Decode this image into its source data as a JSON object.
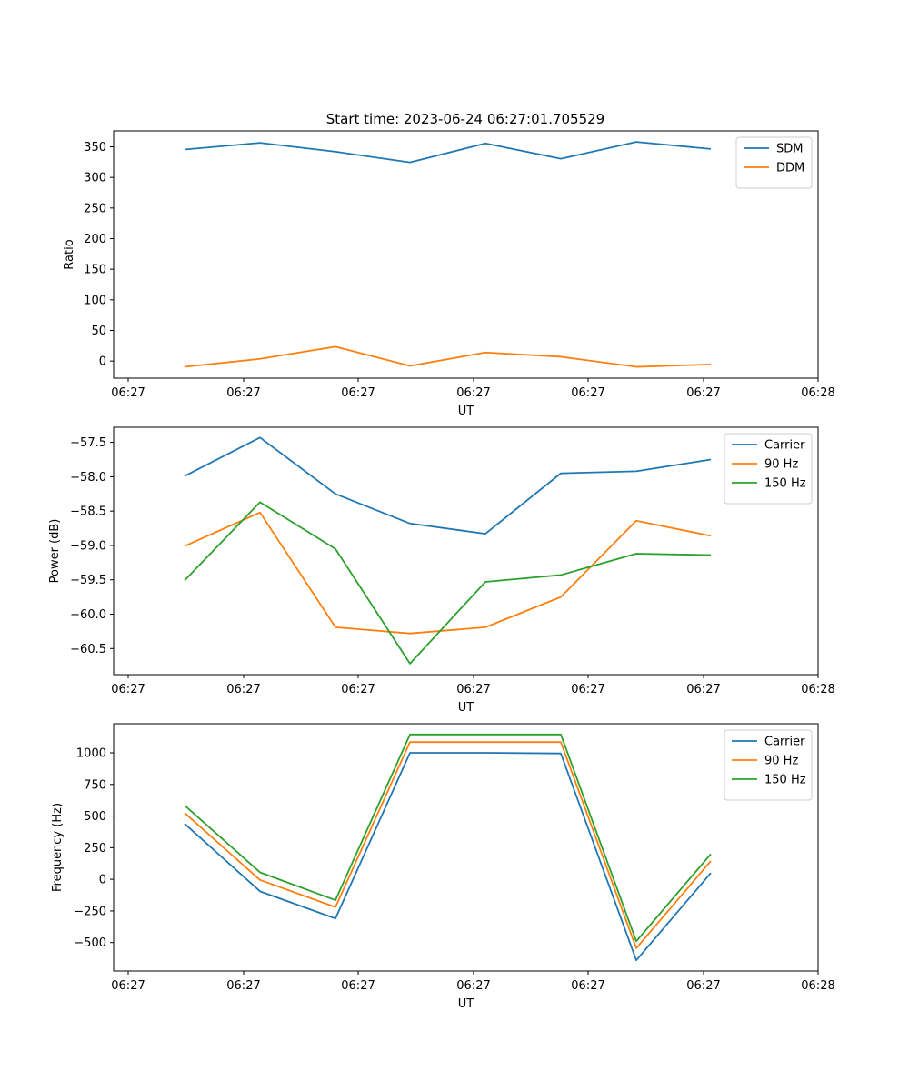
{
  "figure": {
    "title": "Start time: 2023-06-24 06:27:01.705529"
  },
  "chart_data": [
    {
      "type": "line",
      "title": "Start time: 2023-06-24 06:27:01.705529",
      "xlabel": "UT",
      "ylabel": "Ratio",
      "x_tick_labels": [
        "06:27",
        "06:27",
        "06:27",
        "06:27",
        "06:27",
        "06:27",
        "06:28"
      ],
      "y_ticks": [
        0,
        50,
        100,
        150,
        200,
        250,
        300,
        350
      ],
      "ylim": [
        -28,
        376
      ],
      "legend_position": "top-right",
      "grid": false,
      "series": [
        {
          "name": "SDM",
          "color": "#1f77b4",
          "values": [
            345.5,
            356.5,
            342,
            324.5,
            355.5,
            330.5,
            358,
            346.5
          ]
        },
        {
          "name": "DDM",
          "color": "#ff7f0e",
          "values": [
            -9.5,
            3.5,
            23.5,
            -8,
            14,
            7,
            -9.5,
            -5.5
          ]
        }
      ]
    },
    {
      "type": "line",
      "title": "",
      "xlabel": "UT",
      "ylabel": "Power (dB)",
      "x_tick_labels": [
        "06:27",
        "06:27",
        "06:27",
        "06:27",
        "06:27",
        "06:27",
        "06:28"
      ],
      "y_ticks": [
        -57.5,
        -58.0,
        -58.5,
        -59.0,
        -59.5,
        -60.0,
        -60.5
      ],
      "y_tick_labels": [
        "−57.5",
        "−58.0",
        "−58.5",
        "−59.0",
        "−59.5",
        "−60.0",
        "−60.5"
      ],
      "ylim": [
        -60.88,
        -57.28
      ],
      "legend_position": "top-right",
      "grid": false,
      "series": [
        {
          "name": "Carrier",
          "color": "#1f77b4",
          "values": [
            -57.99,
            -57.43,
            -58.25,
            -58.68,
            -58.83,
            -57.95,
            -57.92,
            -57.75
          ]
        },
        {
          "name": "90 Hz",
          "color": "#ff7f0e",
          "values": [
            -59.01,
            -58.52,
            -60.19,
            -60.28,
            -60.19,
            -59.75,
            -58.64,
            -58.86
          ]
        },
        {
          "name": "150 Hz",
          "color": "#2ca02c",
          "values": [
            -59.51,
            -58.37,
            -59.05,
            -60.72,
            -59.53,
            -59.43,
            -59.12,
            -59.14
          ]
        }
      ]
    },
    {
      "type": "line",
      "title": "",
      "xlabel": "UT",
      "ylabel": "Frequency (Hz)",
      "x_tick_labels": [
        "06:27",
        "06:27",
        "06:27",
        "06:27",
        "06:27",
        "06:27",
        "06:28"
      ],
      "y_ticks": [
        -500,
        -250,
        0,
        250,
        500,
        750,
        1000
      ],
      "y_tick_labels": [
        "−500",
        "−250",
        "0",
        "250",
        "500",
        "750",
        "1000"
      ],
      "ylim": [
        -725,
        1230
      ],
      "legend_position": "top-right",
      "grid": false,
      "series": [
        {
          "name": "Carrier",
          "color": "#1f77b4",
          "values": [
            440,
            -95,
            -310,
            1000,
            1000,
            995,
            -640,
            50
          ]
        },
        {
          "name": "90 Hz",
          "color": "#ff7f0e",
          "values": [
            525,
            -5,
            -220,
            1085,
            1085,
            1085,
            -545,
            145
          ]
        },
        {
          "name": "150 Hz",
          "color": "#2ca02c",
          "values": [
            585,
            55,
            -165,
            1145,
            1145,
            1145,
            -490,
            200
          ]
        }
      ]
    }
  ]
}
